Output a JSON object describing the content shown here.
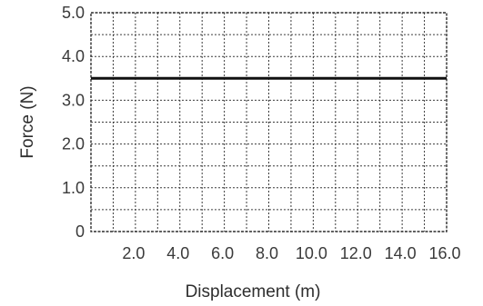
{
  "chart_data": {
    "type": "line",
    "xlabel": "Displacement (m)",
    "ylabel": "Force (N)",
    "xlim": [
      0,
      16
    ],
    "ylim": [
      0,
      5
    ],
    "x_ticks": [
      2,
      4,
      6,
      8,
      10,
      12,
      14,
      16
    ],
    "x_tick_labels": [
      "2.0",
      "4.0",
      "6.0",
      "8.0",
      "10.0",
      "12.0",
      "14.0",
      "16.0"
    ],
    "y_ticks": [
      0,
      1,
      2,
      3,
      4,
      5
    ],
    "y_tick_labels": [
      "0",
      "1.0",
      "2.0",
      "3.0",
      "4.0",
      "5.0"
    ],
    "grid": true,
    "grid_minor_step": {
      "x": 1,
      "y": 0.5
    },
    "series": [
      {
        "x": [
          0,
          16
        ],
        "y": [
          3.5,
          3.5
        ],
        "color": "#111111"
      }
    ]
  }
}
